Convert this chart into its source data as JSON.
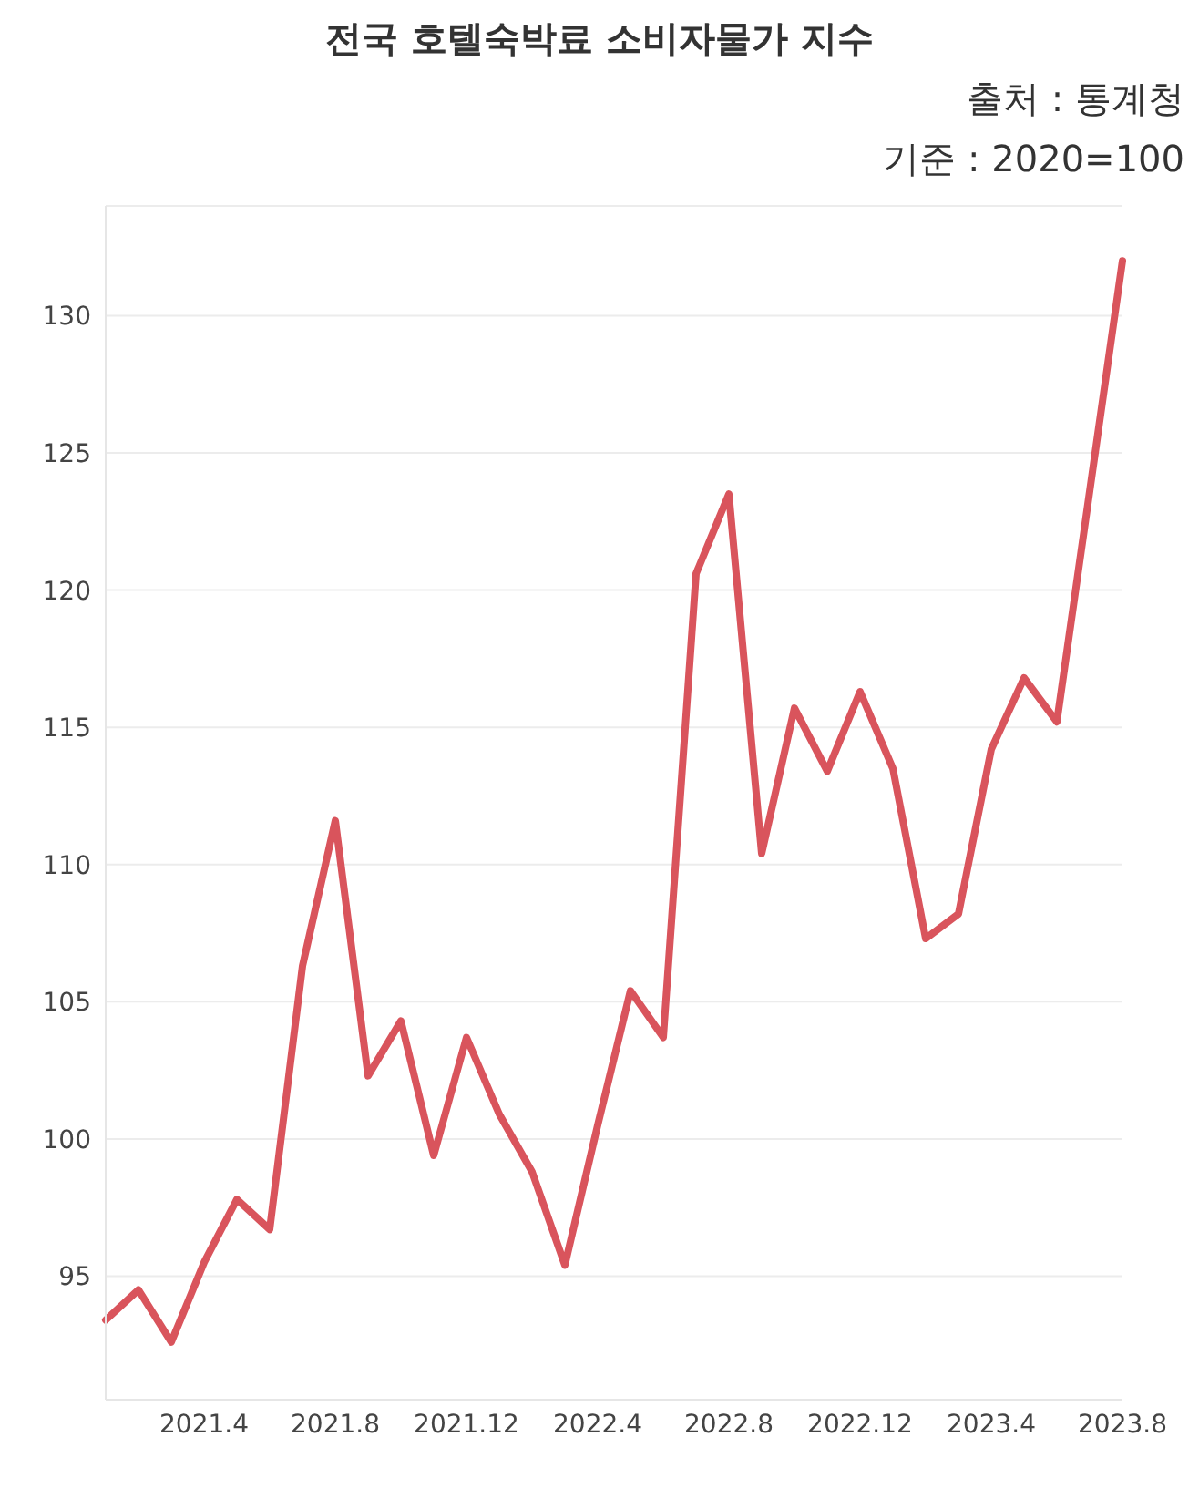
{
  "chart_data": {
    "type": "line",
    "title": "전국 호텔숙박료 소비자물가 지수",
    "annotations": [
      "출처 : 통계청",
      "기준 : 2020=100"
    ],
    "categories": [
      null,
      null,
      null,
      "2021.4",
      null,
      null,
      null,
      "2021.8",
      null,
      null,
      null,
      "2021.12",
      null,
      null,
      null,
      "2022.4",
      null,
      null,
      null,
      "2022.8",
      null,
      null,
      null,
      "2022.12",
      null,
      null,
      null,
      "2023.4",
      null,
      null,
      null,
      "2023.8"
    ],
    "series": [
      {
        "color": "#d9545c",
        "values": [
          93.4,
          94.5,
          92.6,
          95.5,
          97.8,
          96.7,
          106.3,
          111.6,
          102.3,
          104.3,
          99.4,
          103.7,
          100.9,
          98.8,
          95.4,
          100.5,
          105.4,
          103.7,
          120.6,
          123.5,
          110.4,
          115.7,
          113.4,
          116.3,
          113.5,
          107.3,
          108.2,
          114.2,
          116.8,
          115.2,
          123.6,
          132.0
        ]
      }
    ],
    "ylim": [
      90.5,
      134
    ],
    "yticks": [
      95,
      100,
      105,
      110,
      115,
      120,
      125,
      130
    ],
    "grid": "y",
    "marker": "none",
    "line_style": "solid",
    "legend": false
  }
}
